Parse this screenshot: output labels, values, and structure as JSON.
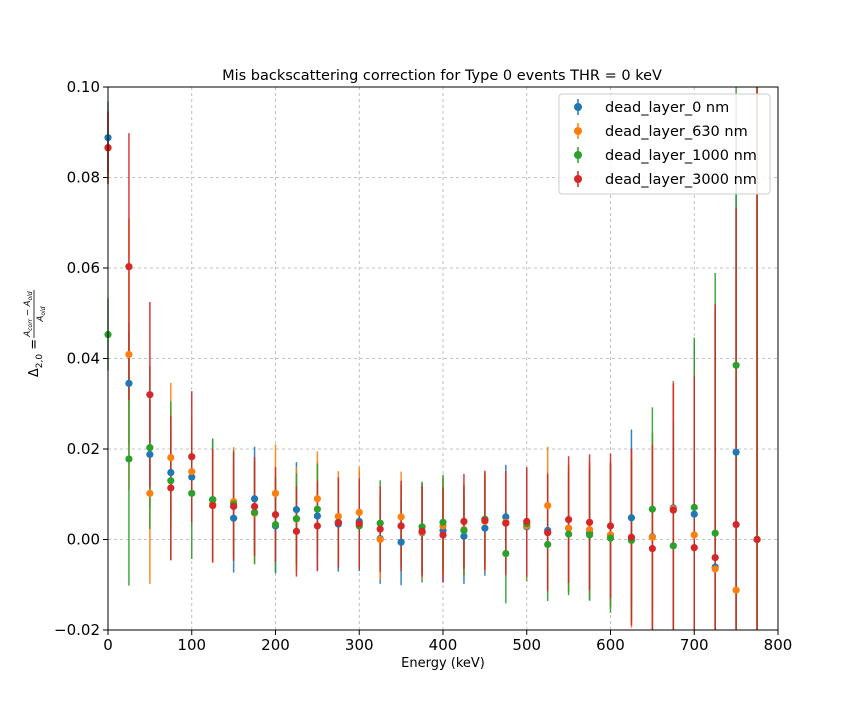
{
  "chart_data": {
    "type": "scatter",
    "title": "Mis backscattering correction for Type 0 events THR = 0 keV",
    "xlabel": "Energy (keV)",
    "ylabel_html": "Δ",
    "xlim": [
      0,
      800
    ],
    "ylim": [
      -0.02,
      0.1
    ],
    "xticks": [
      "0",
      "100",
      "200",
      "300",
      "400",
      "500",
      "600",
      "700",
      "800"
    ],
    "yticks": [
      "−0.02",
      "0.00",
      "0.02",
      "0.04",
      "0.06",
      "0.08",
      "0.10"
    ],
    "grid": true,
    "legend_position": "top-right",
    "x": [
      0,
      25,
      50,
      75,
      100,
      125,
      150,
      175,
      200,
      225,
      250,
      275,
      300,
      325,
      350,
      375,
      400,
      425,
      450,
      475,
      500,
      525,
      550,
      575,
      600,
      625,
      650,
      675,
      700,
      725,
      750,
      775
    ],
    "series": [
      {
        "name": "dead_layer_0 nm",
        "color": "#1f77b4",
        "values": [
          0.0888,
          0.0345,
          0.0188,
          0.0148,
          0.0138,
          0.0088,
          0.0047,
          0.009,
          0.003,
          0.0066,
          0.0052,
          0.0034,
          0.004,
          0.0002,
          -0.0006,
          0.0015,
          0.002,
          0.0007,
          0.0025,
          0.005,
          0.0028,
          0.002,
          0.0025,
          0.0015,
          0.001,
          0.0048,
          0.0006,
          0.007,
          0.0056,
          -0.0061,
          0.0193,
          0.0
        ],
        "errors": [
          0.008,
          0.0135,
          0.012,
          0.01,
          0.009,
          0.0135,
          0.012,
          0.0115,
          0.0105,
          0.0105,
          0.012,
          0.0105,
          0.011,
          0.01,
          0.0095,
          0.011,
          0.0115,
          0.0105,
          0.0105,
          0.0115,
          0.012,
          0.013,
          0.014,
          0.015,
          0.016,
          0.0195,
          0.023,
          0.028,
          0.038,
          0.057,
          0.07,
          0.12
        ]
      },
      {
        "name": "dead_layer_630 nm",
        "color": "#ff7f0e",
        "values": [
          0.0865,
          0.0409,
          0.0102,
          0.0181,
          0.015,
          0.0078,
          0.0084,
          0.0058,
          0.0102,
          0.0045,
          0.009,
          0.0051,
          0.006,
          0.0,
          0.005,
          0.0016,
          0.003,
          0.0022,
          0.004,
          0.0038,
          0.003,
          0.0075,
          0.0025,
          0.0022,
          0.001,
          0.0,
          0.0005,
          0.0068,
          0.001,
          -0.0065,
          -0.0112,
          0.0
        ],
        "errors": [
          0.008,
          0.03,
          0.02,
          0.0165,
          0.012,
          0.013,
          0.012,
          0.011,
          0.0108,
          0.0115,
          0.0105,
          0.01,
          0.01,
          0.009,
          0.01,
          0.0105,
          0.011,
          0.01,
          0.011,
          0.011,
          0.012,
          0.013,
          0.014,
          0.015,
          0.016,
          0.0195,
          0.023,
          0.028,
          0.038,
          0.057,
          0.07,
          0.12
        ]
      },
      {
        "name": "dead_layer_1000 nm",
        "color": "#2ca02c",
        "values": [
          0.0453,
          0.0178,
          0.0203,
          0.013,
          0.0102,
          0.0088,
          0.0078,
          0.006,
          0.0033,
          0.0046,
          0.0067,
          0.0038,
          0.003,
          0.0036,
          0.003,
          0.0028,
          0.0038,
          0.002,
          0.0045,
          -0.0031,
          0.0035,
          -0.0011,
          0.0012,
          0.001,
          0.0003,
          -0.0002,
          0.0067,
          -0.0014,
          0.0071,
          0.0014,
          0.0385,
          0.0
        ],
        "errors": [
          0.008,
          0.028,
          0.018,
          0.0175,
          0.0145,
          0.0135,
          0.012,
          0.0115,
          0.0105,
          0.01,
          0.01,
          0.0095,
          0.0095,
          0.0095,
          0.009,
          0.01,
          0.0105,
          0.01,
          0.01,
          0.011,
          0.012,
          0.0125,
          0.0135,
          0.0145,
          0.0165,
          0.018,
          0.0225,
          0.0275,
          0.0375,
          0.0575,
          0.07,
          0.12
        ]
      },
      {
        "name": "dead_layer_3000 nm",
        "color": "#d62728",
        "values": [
          0.0866,
          0.0603,
          0.032,
          0.0114,
          0.0183,
          0.0075,
          0.0073,
          0.0073,
          0.0055,
          0.0018,
          0.003,
          0.0037,
          0.0035,
          0.0023,
          0.003,
          0.0018,
          0.001,
          0.004,
          0.0042,
          0.0036,
          0.004,
          0.0015,
          0.0044,
          0.0038,
          0.003,
          0.0005,
          -0.002,
          0.0065,
          -0.0018,
          -0.004,
          0.0033,
          0.0
        ],
        "errors": [
          0.008,
          0.0295,
          0.0205,
          0.016,
          0.0145,
          0.0125,
          0.012,
          0.011,
          0.0105,
          0.01,
          0.01,
          0.01,
          0.01,
          0.0095,
          0.01,
          0.01,
          0.0105,
          0.0105,
          0.011,
          0.0115,
          0.012,
          0.013,
          0.014,
          0.015,
          0.016,
          0.0195,
          0.023,
          0.028,
          0.038,
          0.056,
          0.07,
          0.12
        ]
      }
    ]
  }
}
